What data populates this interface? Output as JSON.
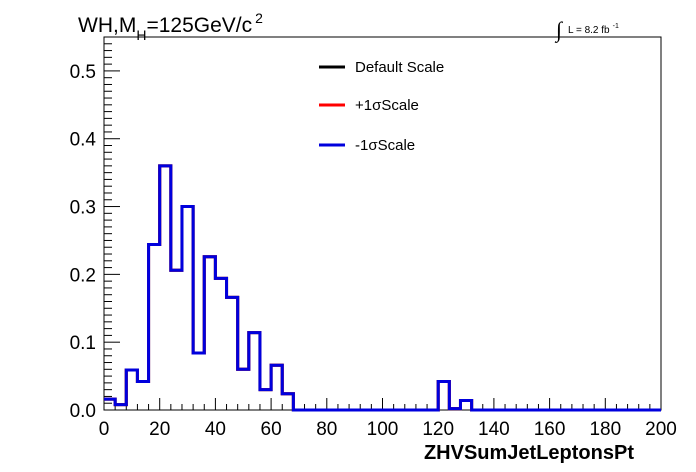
{
  "chart_data": {
    "type": "line",
    "style": "step-histogram",
    "title": "WH,M",
    "title_subscript": "H",
    "title_rest": "=125GeV/c",
    "title_superscript": "2",
    "lumi_integral": "∫",
    "lumi_text": "L = 8.2 fb",
    "lumi_superscript": "-1",
    "xlabel": "ZHVSumJetLeptonsPt",
    "ylabel": "",
    "xlim": [
      0,
      200
    ],
    "ylim": [
      0,
      0.55
    ],
    "grid": false,
    "legend_position": "top-right",
    "x_ticks": [
      "0",
      "20",
      "40",
      "60",
      "80",
      "100",
      "120",
      "140",
      "160",
      "180",
      "200"
    ],
    "y_ticks": [
      "0.0",
      "0.1",
      "0.2",
      "0.3",
      "0.4",
      "0.5"
    ],
    "bin_edges": [
      0,
      4,
      8,
      12,
      16,
      20,
      24,
      28,
      32,
      36,
      40,
      44,
      48,
      52,
      56,
      60,
      64,
      68,
      72,
      76,
      80,
      84,
      88,
      92,
      96,
      100,
      104,
      108,
      112,
      116,
      120,
      124,
      128,
      132,
      136,
      140,
      144,
      148,
      152,
      156,
      160,
      164,
      168,
      172,
      176,
      180,
      184,
      188,
      192,
      196,
      200
    ],
    "series": [
      {
        "name": "Default Scale",
        "color": "#000000",
        "values": [
          0.016,
          0.008,
          0.059,
          0.042,
          0.244,
          0.36,
          0.206,
          0.3,
          0.084,
          0.226,
          0.194,
          0.166,
          0.06,
          0.114,
          0.03,
          0.066,
          0.024,
          0,
          0,
          0,
          0,
          0,
          0,
          0,
          0,
          0,
          0,
          0,
          0,
          0,
          0.042,
          0.002,
          0.014,
          0,
          0,
          0,
          0,
          0,
          0,
          0,
          0,
          0,
          0,
          0,
          0,
          0,
          0,
          0,
          0,
          0
        ]
      },
      {
        "name": "+1σScale",
        "color": "#ff0000",
        "values": [
          0.016,
          0.008,
          0.059,
          0.042,
          0.244,
          0.36,
          0.206,
          0.3,
          0.084,
          0.226,
          0.194,
          0.166,
          0.06,
          0.114,
          0.03,
          0.066,
          0.024,
          0,
          0,
          0,
          0,
          0,
          0,
          0,
          0,
          0,
          0,
          0,
          0,
          0,
          0.042,
          0.002,
          0.014,
          0,
          0,
          0,
          0,
          0,
          0,
          0,
          0,
          0,
          0,
          0,
          0,
          0,
          0,
          0,
          0,
          0
        ]
      },
      {
        "name": "-1σScale",
        "color": "#0000dd",
        "values": [
          0.016,
          0.008,
          0.059,
          0.042,
          0.244,
          0.36,
          0.206,
          0.3,
          0.084,
          0.226,
          0.194,
          0.166,
          0.06,
          0.114,
          0.03,
          0.066,
          0.024,
          0,
          0,
          0,
          0,
          0,
          0,
          0,
          0,
          0,
          0,
          0,
          0,
          0,
          0.042,
          0.002,
          0.014,
          0,
          0,
          0,
          0,
          0,
          0,
          0,
          0,
          0,
          0,
          0,
          0,
          0,
          0,
          0,
          0,
          0
        ]
      }
    ]
  }
}
